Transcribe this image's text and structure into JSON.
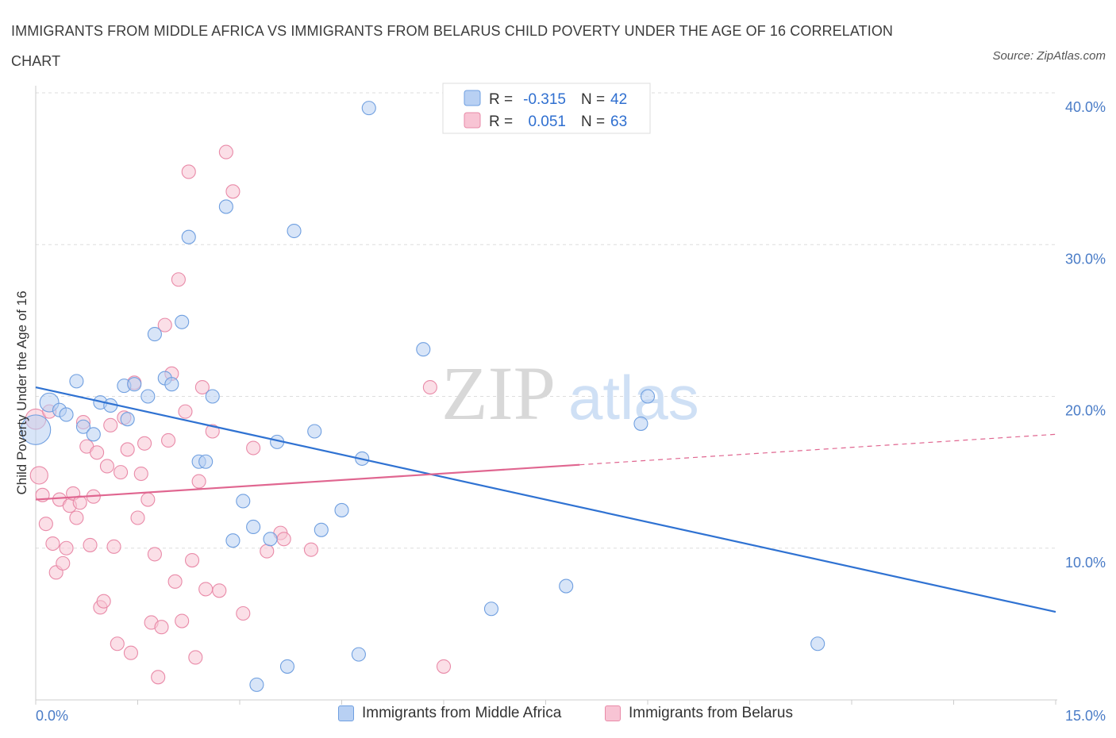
{
  "title": "IMMIGRANTS FROM MIDDLE AFRICA VS IMMIGRANTS FROM BELARUS CHILD POVERTY UNDER THE AGE OF 16 CORRELATION CHART",
  "source": "Source: ZipAtlas.com",
  "watermark": {
    "zip": "ZIP",
    "atlas": "atlas"
  },
  "colors": {
    "blue_fill": "#b8d0f3",
    "blue_stroke": "#6f9fe0",
    "blue_line": "#2f72d2",
    "pink_fill": "#f8c4d4",
    "pink_stroke": "#e98aa8",
    "pink_line": "#e06690",
    "axis_text": "#4a7cc7",
    "grid": "#dddddd"
  },
  "legend_top": [
    {
      "r_label": "R =",
      "r_value": "-0.315",
      "n_label": "N =",
      "n_value": "42"
    },
    {
      "r_label": "R =",
      "r_value": "0.051",
      "n_label": "N =",
      "n_value": "63"
    }
  ],
  "chart_data": {
    "type": "scatter",
    "ylabel": "Child Poverty Under the Age of 16",
    "xlim": [
      0,
      15
    ],
    "ylim": [
      0,
      40
    ],
    "x_tick_labels": [
      "0.0%",
      "15.0%"
    ],
    "y_ticks": [
      10,
      20,
      30,
      40
    ],
    "y_tick_labels": [
      "10.0%",
      "20.0%",
      "30.0%",
      "40.0%"
    ],
    "grid": true,
    "series": [
      {
        "name": "Immigrants from Middle Africa",
        "color": "blue",
        "trend": {
          "x": [
            0,
            15
          ],
          "y": [
            20.6,
            5.8
          ],
          "dashed_from": null
        },
        "points": [
          {
            "x": 0.0,
            "y": 17.8,
            "s": 2.2
          },
          {
            "x": 0.2,
            "y": 19.6,
            "s": 1.4
          },
          {
            "x": 0.35,
            "y": 19.1
          },
          {
            "x": 0.45,
            "y": 18.8
          },
          {
            "x": 0.6,
            "y": 21.0
          },
          {
            "x": 0.7,
            "y": 18.0
          },
          {
            "x": 0.85,
            "y": 17.5
          },
          {
            "x": 0.95,
            "y": 19.6
          },
          {
            "x": 1.1,
            "y": 19.4
          },
          {
            "x": 1.3,
            "y": 20.7
          },
          {
            "x": 1.35,
            "y": 18.5
          },
          {
            "x": 1.45,
            "y": 20.8
          },
          {
            "x": 1.65,
            "y": 20.0
          },
          {
            "x": 1.75,
            "y": 24.1
          },
          {
            "x": 1.9,
            "y": 21.2
          },
          {
            "x": 2.0,
            "y": 20.8
          },
          {
            "x": 2.15,
            "y": 24.9
          },
          {
            "x": 2.25,
            "y": 30.5
          },
          {
            "x": 2.4,
            "y": 15.7
          },
          {
            "x": 2.5,
            "y": 15.7
          },
          {
            "x": 2.6,
            "y": 20.0
          },
          {
            "x": 2.8,
            "y": 32.5
          },
          {
            "x": 2.9,
            "y": 10.5
          },
          {
            "x": 3.05,
            "y": 13.1
          },
          {
            "x": 3.2,
            "y": 11.4
          },
          {
            "x": 3.25,
            "y": 1.0
          },
          {
            "x": 3.45,
            "y": 10.6
          },
          {
            "x": 3.55,
            "y": 17.0
          },
          {
            "x": 3.7,
            "y": 2.2
          },
          {
            "x": 3.8,
            "y": 30.9
          },
          {
            "x": 4.1,
            "y": 17.7
          },
          {
            "x": 4.2,
            "y": 11.2
          },
          {
            "x": 4.5,
            "y": 12.5
          },
          {
            "x": 4.75,
            "y": 3.0
          },
          {
            "x": 4.8,
            "y": 15.9
          },
          {
            "x": 4.9,
            "y": 39.0
          },
          {
            "x": 5.7,
            "y": 23.1
          },
          {
            "x": 6.7,
            "y": 6.0
          },
          {
            "x": 7.8,
            "y": 7.5
          },
          {
            "x": 8.9,
            "y": 18.2
          },
          {
            "x": 9.0,
            "y": 20.0
          },
          {
            "x": 11.5,
            "y": 3.7
          }
        ]
      },
      {
        "name": "Immigrants from Belarus",
        "color": "pink",
        "trend": {
          "x": [
            0,
            15
          ],
          "y": [
            13.2,
            17.5
          ],
          "dashed_from": 8.0
        },
        "points": [
          {
            "x": 0.0,
            "y": 18.5,
            "s": 1.5
          },
          {
            "x": 0.05,
            "y": 14.8,
            "s": 1.3
          },
          {
            "x": 0.1,
            "y": 13.5
          },
          {
            "x": 0.15,
            "y": 11.6
          },
          {
            "x": 0.2,
            "y": 19.0
          },
          {
            "x": 0.25,
            "y": 10.3
          },
          {
            "x": 0.3,
            "y": 8.4
          },
          {
            "x": 0.35,
            "y": 13.2
          },
          {
            "x": 0.4,
            "y": 9.0
          },
          {
            "x": 0.45,
            "y": 10.0
          },
          {
            "x": 0.5,
            "y": 12.8
          },
          {
            "x": 0.55,
            "y": 13.6
          },
          {
            "x": 0.6,
            "y": 12.0
          },
          {
            "x": 0.65,
            "y": 13.0
          },
          {
            "x": 0.7,
            "y": 18.3
          },
          {
            "x": 0.75,
            "y": 16.7
          },
          {
            "x": 0.8,
            "y": 10.2
          },
          {
            "x": 0.85,
            "y": 13.4
          },
          {
            "x": 0.9,
            "y": 16.3
          },
          {
            "x": 0.95,
            "y": 6.1
          },
          {
            "x": 1.0,
            "y": 6.5
          },
          {
            "x": 1.05,
            "y": 15.4
          },
          {
            "x": 1.1,
            "y": 18.1
          },
          {
            "x": 1.15,
            "y": 10.1
          },
          {
            "x": 1.2,
            "y": 3.7
          },
          {
            "x": 1.25,
            "y": 15.0
          },
          {
            "x": 1.3,
            "y": 18.6
          },
          {
            "x": 1.35,
            "y": 16.5
          },
          {
            "x": 1.4,
            "y": 3.1
          },
          {
            "x": 1.45,
            "y": 20.9
          },
          {
            "x": 1.5,
            "y": 12.0
          },
          {
            "x": 1.55,
            "y": 14.9
          },
          {
            "x": 1.6,
            "y": 16.9
          },
          {
            "x": 1.65,
            "y": 13.2
          },
          {
            "x": 1.7,
            "y": 5.1
          },
          {
            "x": 1.75,
            "y": 9.6
          },
          {
            "x": 1.8,
            "y": 1.5
          },
          {
            "x": 1.85,
            "y": 4.8
          },
          {
            "x": 1.9,
            "y": 24.7
          },
          {
            "x": 1.95,
            "y": 17.1
          },
          {
            "x": 2.0,
            "y": 21.5
          },
          {
            "x": 2.05,
            "y": 7.8
          },
          {
            "x": 2.1,
            "y": 27.7
          },
          {
            "x": 2.15,
            "y": 5.2
          },
          {
            "x": 2.2,
            "y": 19.0
          },
          {
            "x": 2.25,
            "y": 34.8
          },
          {
            "x": 2.3,
            "y": 9.2
          },
          {
            "x": 2.35,
            "y": 2.8
          },
          {
            "x": 2.4,
            "y": 14.4
          },
          {
            "x": 2.45,
            "y": 20.6
          },
          {
            "x": 2.5,
            "y": 7.3
          },
          {
            "x": 2.6,
            "y": 17.7
          },
          {
            "x": 2.7,
            "y": 7.2
          },
          {
            "x": 2.8,
            "y": 36.1
          },
          {
            "x": 2.9,
            "y": 33.5
          },
          {
            "x": 3.05,
            "y": 5.7
          },
          {
            "x": 3.2,
            "y": 16.6
          },
          {
            "x": 3.4,
            "y": 9.8
          },
          {
            "x": 3.6,
            "y": 11.0
          },
          {
            "x": 4.05,
            "y": 9.9
          },
          {
            "x": 5.8,
            "y": 20.6
          },
          {
            "x": 6.0,
            "y": 2.2
          },
          {
            "x": 3.65,
            "y": 10.6
          }
        ]
      }
    ]
  }
}
